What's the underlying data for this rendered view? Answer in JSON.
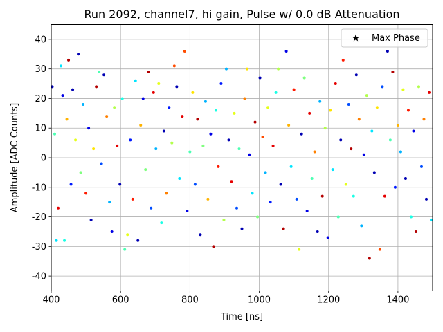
{
  "chart_data": {
    "type": "scatter",
    "title": "Run 2092, channel7, hi gain, Pulse w/ 0.0 dB Attenuation",
    "xlabel": "Time [ns]",
    "ylabel": "Amplitude [ADC Counts]",
    "xlim": [
      400,
      1500
    ],
    "ylim": [
      -45,
      45
    ],
    "x_ticks": [
      400,
      600,
      800,
      1000,
      1200,
      1400
    ],
    "y_ticks": [
      -40,
      -30,
      -20,
      -10,
      0,
      10,
      20,
      30,
      40
    ],
    "grid": true,
    "legend": {
      "position": "top-right",
      "entries": [
        {
          "label": "Max Phase",
          "marker": "star",
          "color": "#000000"
        }
      ]
    },
    "colormap": "jet",
    "series": [
      {
        "points": [
          {
            "x": 403,
            "y": 24,
            "c": 0.05
          },
          {
            "x": 410,
            "y": 8,
            "c": 0.45
          },
          {
            "x": 415,
            "y": -28,
            "c": 0.35
          },
          {
            "x": 420,
            "y": -17,
            "c": 0.9
          },
          {
            "x": 428,
            "y": 31,
            "c": 0.35
          },
          {
            "x": 433,
            "y": 21,
            "c": 0.1
          },
          {
            "x": 438,
            "y": -28,
            "c": 0.4
          },
          {
            "x": 445,
            "y": 13,
            "c": 0.7
          },
          {
            "x": 450,
            "y": 33,
            "c": 0.95
          },
          {
            "x": 457,
            "y": -9,
            "c": 0.15
          },
          {
            "x": 462,
            "y": 23,
            "c": 0.05
          },
          {
            "x": 470,
            "y": 6,
            "c": 0.6
          },
          {
            "x": 478,
            "y": 35,
            "c": 0.05
          },
          {
            "x": 485,
            "y": -5,
            "c": 0.5
          },
          {
            "x": 492,
            "y": 18,
            "c": 0.3
          },
          {
            "x": 500,
            "y": -12,
            "c": 0.85
          },
          {
            "x": 508,
            "y": 10,
            "c": 0.1
          },
          {
            "x": 515,
            "y": -21,
            "c": 0.05
          },
          {
            "x": 522,
            "y": 3,
            "c": 0.65
          },
          {
            "x": 530,
            "y": 24,
            "c": 0.95
          },
          {
            "x": 538,
            "y": 29,
            "c": 0.45
          },
          {
            "x": 545,
            "y": -2,
            "c": 0.2
          },
          {
            "x": 552,
            "y": 28,
            "c": 0.05
          },
          {
            "x": 560,
            "y": 14,
            "c": 0.75
          },
          {
            "x": 568,
            "y": -15,
            "c": 0.3
          },
          {
            "x": 575,
            "y": -25,
            "c": 0.1
          },
          {
            "x": 582,
            "y": 17,
            "c": 0.55
          },
          {
            "x": 590,
            "y": 4,
            "c": 0.9
          },
          {
            "x": 598,
            "y": -9,
            "c": 0.05
          },
          {
            "x": 605,
            "y": 20,
            "c": 0.4
          },
          {
            "x": 612,
            "y": -31,
            "c": 0.45
          },
          {
            "x": 620,
            "y": -26,
            "c": 0.6
          },
          {
            "x": 628,
            "y": 6,
            "c": 0.15
          },
          {
            "x": 635,
            "y": -14,
            "c": 0.85
          },
          {
            "x": 643,
            "y": 26,
            "c": 0.35
          },
          {
            "x": 650,
            "y": -28,
            "c": 0.05
          },
          {
            "x": 658,
            "y": 11,
            "c": 0.7
          },
          {
            "x": 665,
            "y": 20,
            "c": 0.1
          },
          {
            "x": 672,
            "y": -4,
            "c": 0.5
          },
          {
            "x": 680,
            "y": 29,
            "c": 0.95
          },
          {
            "x": 688,
            "y": -17,
            "c": 0.2
          },
          {
            "x": 695,
            "y": 22,
            "c": 0.9
          },
          {
            "x": 702,
            "y": 3,
            "c": 0.3
          },
          {
            "x": 710,
            "y": 25,
            "c": 0.6
          },
          {
            "x": 718,
            "y": -22,
            "c": 0.4
          },
          {
            "x": 725,
            "y": 9,
            "c": 0.05
          },
          {
            "x": 732,
            "y": -12,
            "c": 0.75
          },
          {
            "x": 740,
            "y": 17,
            "c": 0.15
          },
          {
            "x": 748,
            "y": 5,
            "c": 0.55
          },
          {
            "x": 755,
            "y": 31,
            "c": 0.8
          },
          {
            "x": 762,
            "y": 24,
            "c": 0.05
          },
          {
            "x": 770,
            "y": -7,
            "c": 0.35
          },
          {
            "x": 778,
            "y": 14,
            "c": 0.9
          },
          {
            "x": 785,
            "y": 36,
            "c": 0.8
          },
          {
            "x": 792,
            "y": -18,
            "c": 0.1
          },
          {
            "x": 800,
            "y": 2,
            "c": 0.45
          },
          {
            "x": 808,
            "y": 22,
            "c": 0.65
          },
          {
            "x": 815,
            "y": -9,
            "c": 0.2
          },
          {
            "x": 822,
            "y": 13,
            "c": 0.95
          },
          {
            "x": 830,
            "y": -26,
            "c": 0.05
          },
          {
            "x": 838,
            "y": 4,
            "c": 0.5
          },
          {
            "x": 845,
            "y": 19,
            "c": 0.3
          },
          {
            "x": 852,
            "y": -14,
            "c": 0.7
          },
          {
            "x": 860,
            "y": 8,
            "c": 0.1
          },
          {
            "x": 868,
            "y": -30,
            "c": 0.95
          },
          {
            "x": 875,
            "y": 16,
            "c": 0.4
          },
          {
            "x": 882,
            "y": -3,
            "c": 0.85
          },
          {
            "x": 890,
            "y": 25,
            "c": 0.15
          },
          {
            "x": 898,
            "y": -21,
            "c": 0.55
          },
          {
            "x": 905,
            "y": 30,
            "c": 0.3
          },
          {
            "x": 912,
            "y": 6,
            "c": 0.05
          },
          {
            "x": 920,
            "y": -8,
            "c": 0.9
          },
          {
            "x": 928,
            "y": 15,
            "c": 0.6
          },
          {
            "x": 935,
            "y": -17,
            "c": 0.2
          },
          {
            "x": 942,
            "y": 3,
            "c": 0.45
          },
          {
            "x": 950,
            "y": -24,
            "c": 0.05
          },
          {
            "x": 958,
            "y": 20,
            "c": 0.75
          },
          {
            "x": 965,
            "y": 30,
            "c": 0.65
          },
          {
            "x": 972,
            "y": 1,
            "c": 0.1
          },
          {
            "x": 980,
            "y": -12,
            "c": 0.35
          },
          {
            "x": 988,
            "y": 12,
            "c": 0.95
          },
          {
            "x": 995,
            "y": -20,
            "c": 0.5
          },
          {
            "x": 1002,
            "y": 27,
            "c": 0.05
          },
          {
            "x": 1010,
            "y": 7,
            "c": 0.8
          },
          {
            "x": 1018,
            "y": -5,
            "c": 0.3
          },
          {
            "x": 1025,
            "y": 17,
            "c": 0.6
          },
          {
            "x": 1032,
            "y": -15,
            "c": 0.15
          },
          {
            "x": 1040,
            "y": 4,
            "c": 0.9
          },
          {
            "x": 1048,
            "y": 22,
            "c": 0.4
          },
          {
            "x": 1055,
            "y": 30,
            "c": 0.55
          },
          {
            "x": 1062,
            "y": -9,
            "c": 0.05
          },
          {
            "x": 1070,
            "y": -24,
            "c": 0.95
          },
          {
            "x": 1078,
            "y": 36,
            "c": 0.1
          },
          {
            "x": 1085,
            "y": 11,
            "c": 0.7
          },
          {
            "x": 1092,
            "y": -3,
            "c": 0.35
          },
          {
            "x": 1100,
            "y": 23,
            "c": 0.85
          },
          {
            "x": 1108,
            "y": -14,
            "c": 0.2
          },
          {
            "x": 1115,
            "y": -31,
            "c": 0.6
          },
          {
            "x": 1122,
            "y": 8,
            "c": 0.05
          },
          {
            "x": 1130,
            "y": 27,
            "c": 0.5
          },
          {
            "x": 1138,
            "y": -18,
            "c": 0.1
          },
          {
            "x": 1145,
            "y": 15,
            "c": 0.9
          },
          {
            "x": 1152,
            "y": -7,
            "c": 0.45
          },
          {
            "x": 1160,
            "y": 2,
            "c": 0.75
          },
          {
            "x": 1168,
            "y": -25,
            "c": 0.05
          },
          {
            "x": 1175,
            "y": 19,
            "c": 0.3
          },
          {
            "x": 1182,
            "y": -13,
            "c": 0.95
          },
          {
            "x": 1190,
            "y": 10,
            "c": 0.55
          },
          {
            "x": 1198,
            "y": -27,
            "c": 0.1
          },
          {
            "x": 1205,
            "y": 16,
            "c": 0.65
          },
          {
            "x": 1212,
            "y": -4,
            "c": 0.35
          },
          {
            "x": 1220,
            "y": 25,
            "c": 0.9
          },
          {
            "x": 1228,
            "y": -20,
            "c": 0.45
          },
          {
            "x": 1235,
            "y": 6,
            "c": 0.05
          },
          {
            "x": 1242,
            "y": 33,
            "c": 0.85
          },
          {
            "x": 1250,
            "y": -9,
            "c": 0.6
          },
          {
            "x": 1258,
            "y": 18,
            "c": 0.2
          },
          {
            "x": 1265,
            "y": 3,
            "c": 0.95
          },
          {
            "x": 1272,
            "y": -13,
            "c": 0.4
          },
          {
            "x": 1280,
            "y": 28,
            "c": 0.05
          },
          {
            "x": 1288,
            "y": 13,
            "c": 0.75
          },
          {
            "x": 1295,
            "y": -23,
            "c": 0.3
          },
          {
            "x": 1302,
            "y": 1,
            "c": 0.1
          },
          {
            "x": 1310,
            "y": 21,
            "c": 0.55
          },
          {
            "x": 1318,
            "y": -34,
            "c": 0.95
          },
          {
            "x": 1325,
            "y": 9,
            "c": 0.35
          },
          {
            "x": 1332,
            "y": -5,
            "c": 0.05
          },
          {
            "x": 1340,
            "y": 17,
            "c": 0.65
          },
          {
            "x": 1348,
            "y": -31,
            "c": 0.8
          },
          {
            "x": 1355,
            "y": 24,
            "c": 0.2
          },
          {
            "x": 1362,
            "y": -13,
            "c": 0.9
          },
          {
            "x": 1370,
            "y": 36,
            "c": 0.05
          },
          {
            "x": 1378,
            "y": 6,
            "c": 0.45
          },
          {
            "x": 1385,
            "y": 29,
            "c": 0.95
          },
          {
            "x": 1392,
            "y": -10,
            "c": 0.15
          },
          {
            "x": 1400,
            "y": 11,
            "c": 0.7
          },
          {
            "x": 1408,
            "y": 2,
            "c": 0.3
          },
          {
            "x": 1415,
            "y": 23,
            "c": 0.6
          },
          {
            "x": 1422,
            "y": -7,
            "c": 0.05
          },
          {
            "x": 1430,
            "y": 16,
            "c": 0.85
          },
          {
            "x": 1438,
            "y": -20,
            "c": 0.4
          },
          {
            "x": 1445,
            "y": 9,
            "c": 0.1
          },
          {
            "x": 1452,
            "y": -25,
            "c": 0.95
          },
          {
            "x": 1460,
            "y": 24,
            "c": 0.55
          },
          {
            "x": 1468,
            "y": -3,
            "c": 0.2
          },
          {
            "x": 1475,
            "y": 13,
            "c": 0.75
          },
          {
            "x": 1482,
            "y": -14,
            "c": 0.05
          },
          {
            "x": 1490,
            "y": 22,
            "c": 0.9
          },
          {
            "x": 1496,
            "y": -21,
            "c": 0.35
          }
        ]
      }
    ]
  }
}
